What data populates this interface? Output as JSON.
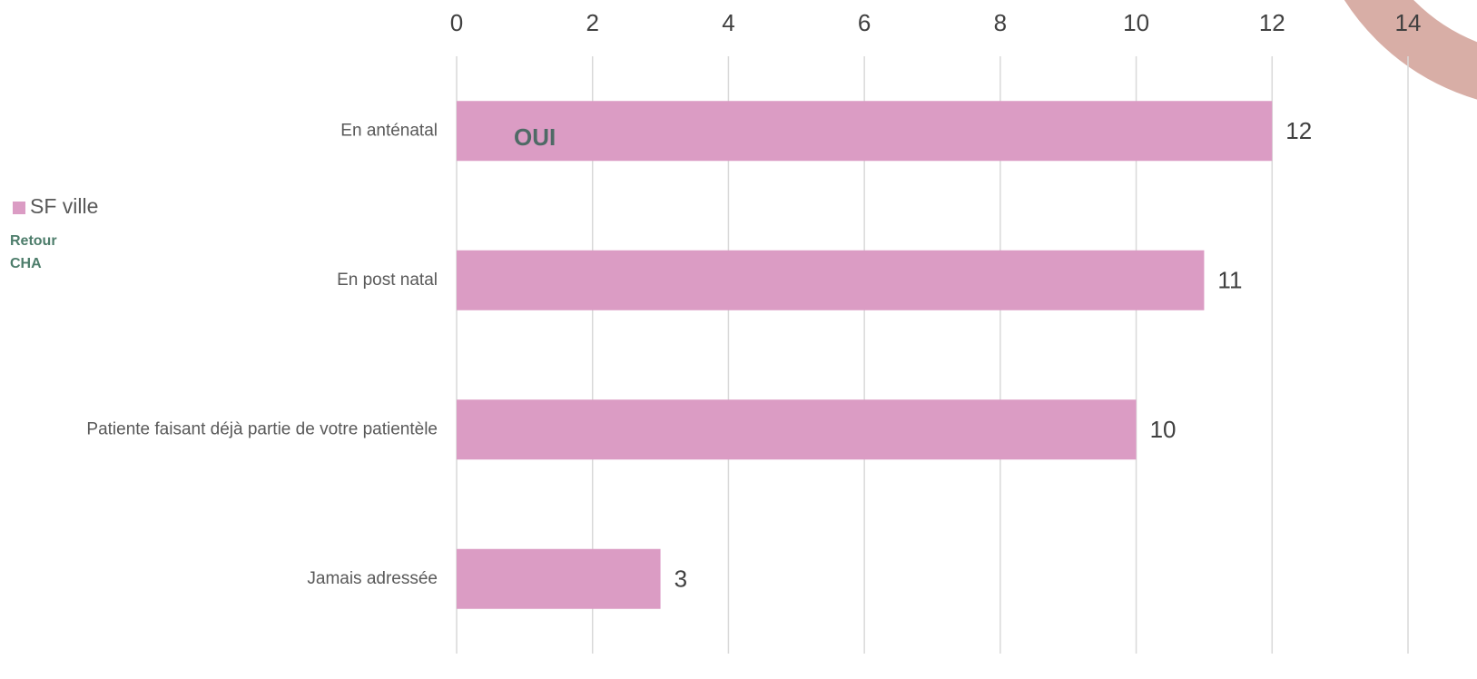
{
  "chart_data": {
    "type": "bar",
    "orientation": "horizontal",
    "categories": [
      "En anténatal",
      "En post natal",
      "Patiente faisant déjà partie de votre patientèle",
      "Jamais adressée"
    ],
    "series": [
      {
        "name": "SF ville",
        "color": "#db9cc4",
        "values": [
          12,
          11,
          10,
          3
        ]
      }
    ],
    "xlim": [
      0,
      14
    ],
    "xticks": [
      0,
      2,
      4,
      6,
      8,
      10,
      12,
      14
    ],
    "grid": true,
    "legend": "left",
    "annotations": [
      "OUI",
      "Retour CHA"
    ]
  }
}
